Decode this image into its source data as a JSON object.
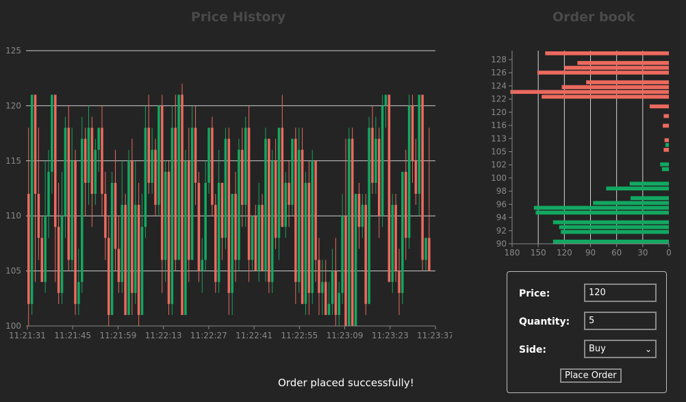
{
  "price_history": {
    "title": "Price History",
    "chart_data": {
      "type": "candlestick",
      "title": "Price History",
      "ylim": [
        100,
        125
      ],
      "y_ticks": [
        100,
        105,
        110,
        115,
        120,
        125
      ],
      "x_ticks": [
        "11:21:31",
        "11:21:45",
        "11:21:59",
        "11:22:13",
        "11:22:27",
        "11:22:41",
        "11:22:55",
        "11:23:09",
        "11:23:23",
        "11:23:37"
      ],
      "grid": "horizontal",
      "candles": [
        [
          112,
          102,
          100,
          118,
          "down"
        ],
        [
          102,
          121,
          101,
          121,
          "up"
        ],
        [
          121,
          112,
          104,
          121,
          "down"
        ],
        [
          112,
          108,
          106,
          118,
          "down"
        ],
        [
          108,
          104,
          104,
          110,
          "down"
        ],
        [
          104,
          110,
          103,
          115,
          "up"
        ],
        [
          110,
          114,
          108,
          116,
          "up"
        ],
        [
          114,
          121,
          112,
          121,
          "up"
        ],
        [
          121,
          109,
          104,
          121,
          "down"
        ],
        [
          109,
          103,
          102,
          113,
          "down"
        ],
        [
          103,
          110,
          102,
          114,
          "up"
        ],
        [
          110,
          118,
          108,
          119,
          "up"
        ],
        [
          118,
          106,
          105,
          120,
          "down"
        ],
        [
          106,
          115,
          105,
          118,
          "up"
        ],
        [
          115,
          102,
          101,
          116,
          "down"
        ],
        [
          102,
          104,
          101,
          107,
          "up"
        ],
        [
          104,
          117,
          103,
          119,
          "up"
        ],
        [
          117,
          113,
          110,
          118,
          "down"
        ],
        [
          113,
          118,
          111,
          120,
          "up"
        ],
        [
          118,
          112,
          109,
          119,
          "down"
        ],
        [
          112,
          116,
          111,
          117,
          "up"
        ],
        [
          116,
          118,
          114,
          118,
          "up"
        ],
        [
          118,
          112,
          110,
          120,
          "down"
        ],
        [
          112,
          108,
          106,
          114,
          "down"
        ],
        [
          108,
          101,
          100,
          110,
          "down"
        ],
        [
          101,
          113,
          101,
          114,
          "up"
        ],
        [
          113,
          107,
          105,
          116,
          "down"
        ],
        [
          107,
          104,
          103,
          110,
          "down"
        ],
        [
          104,
          111,
          103,
          115,
          "up"
        ],
        [
          111,
          101,
          101,
          112,
          "down"
        ],
        [
          101,
          115,
          101,
          116,
          "up"
        ],
        [
          115,
          103,
          101,
          117,
          "down"
        ],
        [
          103,
          111,
          102,
          115,
          "up"
        ],
        [
          111,
          101,
          100,
          113,
          "down"
        ],
        [
          101,
          109,
          101,
          112,
          "up"
        ],
        [
          109,
          118,
          108,
          120,
          "up"
        ],
        [
          118,
          113,
          112,
          121,
          "down"
        ],
        [
          113,
          116,
          112,
          118,
          "up"
        ],
        [
          116,
          111,
          110,
          117,
          "down"
        ],
        [
          111,
          120,
          110,
          120,
          "up"
        ],
        [
          120,
          106,
          103,
          121,
          "down"
        ],
        [
          106,
          114,
          104,
          115,
          "up"
        ],
        [
          114,
          102,
          101,
          115,
          "down"
        ],
        [
          102,
          118,
          101,
          120,
          "up"
        ],
        [
          118,
          106,
          105,
          121,
          "down"
        ],
        [
          106,
          121,
          106,
          121,
          "up"
        ],
        [
          121,
          101,
          101,
          122,
          "down"
        ],
        [
          101,
          115,
          101,
          116,
          "up"
        ],
        [
          115,
          106,
          104,
          118,
          "down"
        ],
        [
          106,
          118,
          106,
          120,
          "up"
        ],
        [
          118,
          113,
          111,
          120,
          "down"
        ],
        [
          113,
          105,
          104,
          114,
          "down"
        ],
        [
          105,
          106,
          103,
          108,
          "up"
        ],
        [
          106,
          113,
          105,
          115,
          "up"
        ],
        [
          113,
          118,
          112,
          118,
          "up"
        ],
        [
          118,
          111,
          110,
          119,
          "down"
        ],
        [
          111,
          104,
          103,
          112,
          "down"
        ],
        [
          104,
          113,
          103,
          116,
          "up"
        ],
        [
          113,
          108,
          106,
          113,
          "down"
        ],
        [
          108,
          117,
          107,
          118,
          "up"
        ],
        [
          117,
          103,
          101,
          118,
          "down"
        ],
        [
          103,
          112,
          101,
          112,
          "up"
        ],
        [
          112,
          106,
          104,
          114,
          "down"
        ],
        [
          106,
          116,
          105,
          117,
          "up"
        ],
        [
          116,
          111,
          109,
          118,
          "down"
        ],
        [
          111,
          118,
          109,
          119,
          "up"
        ],
        [
          118,
          106,
          104,
          120,
          "down"
        ],
        [
          106,
          110,
          105,
          110,
          "up"
        ],
        [
          110,
          105,
          105,
          111,
          "down"
        ],
        [
          105,
          111,
          104,
          113,
          "up"
        ],
        [
          111,
          105,
          105,
          112,
          "down"
        ],
        [
          105,
          117,
          104,
          118,
          "up"
        ],
        [
          117,
          104,
          103,
          117,
          "down"
        ],
        [
          104,
          115,
          103,
          116,
          "up"
        ],
        [
          115,
          108,
          107,
          117,
          "down"
        ],
        [
          108,
          118,
          106,
          118,
          "up"
        ],
        [
          118,
          109,
          109,
          121,
          "down"
        ],
        [
          109,
          113,
          108,
          114,
          "up"
        ],
        [
          113,
          111,
          109,
          115,
          "down"
        ],
        [
          111,
          117,
          110,
          117,
          "up"
        ],
        [
          117,
          104,
          102,
          118,
          "down"
        ],
        [
          104,
          116,
          103,
          118,
          "up"
        ],
        [
          116,
          102,
          102,
          118,
          "down"
        ],
        [
          102,
          113,
          101,
          114,
          "up"
        ],
        [
          113,
          103,
          101,
          115,
          "down"
        ],
        [
          103,
          115,
          102,
          116,
          "up"
        ],
        [
          115,
          106,
          104,
          115,
          "down"
        ],
        [
          106,
          103,
          101,
          108,
          "down"
        ],
        [
          103,
          104,
          101,
          106,
          "up"
        ],
        [
          104,
          101,
          101,
          106,
          "down"
        ],
        [
          101,
          102,
          101,
          104,
          "up"
        ],
        [
          102,
          105,
          101,
          107,
          "up"
        ],
        [
          105,
          101,
          100,
          108,
          "down"
        ],
        [
          101,
          103,
          100,
          104,
          "up"
        ],
        [
          103,
          110,
          102,
          112,
          "up"
        ],
        [
          110,
          100,
          100,
          117,
          "down"
        ],
        [
          100,
          117,
          100,
          118,
          "up"
        ],
        [
          117,
          100,
          100,
          118,
          "down"
        ],
        [
          100,
          112,
          100,
          112,
          "up"
        ],
        [
          112,
          109,
          107,
          113,
          "down"
        ],
        [
          109,
          111,
          108,
          112,
          "up"
        ],
        [
          111,
          102,
          101,
          112,
          "down"
        ],
        [
          102,
          118,
          102,
          119,
          "up"
        ],
        [
          118,
          113,
          112,
          120,
          "down"
        ],
        [
          113,
          117,
          112,
          119,
          "up"
        ],
        [
          117,
          110,
          108,
          118,
          "down"
        ],
        [
          110,
          120,
          109,
          121,
          "up"
        ],
        [
          120,
          121,
          118,
          121,
          "up"
        ],
        [
          121,
          104,
          104,
          121,
          "down"
        ],
        [
          104,
          111,
          103,
          112,
          "up"
        ],
        [
          111,
          105,
          104,
          112,
          "down"
        ],
        [
          105,
          103,
          101,
          107,
          "down"
        ],
        [
          103,
          114,
          102,
          114,
          "up"
        ],
        [
          114,
          108,
          106,
          116,
          "down"
        ],
        [
          108,
          120,
          107,
          121,
          "up"
        ],
        [
          120,
          115,
          113,
          121,
          "down"
        ],
        [
          115,
          112,
          111,
          117,
          "down"
        ],
        [
          112,
          121,
          110,
          121,
          "up"
        ],
        [
          121,
          106,
          105,
          121,
          "down"
        ],
        [
          106,
          108,
          105,
          108,
          "up"
        ],
        [
          108,
          105,
          105,
          118,
          "down"
        ]
      ]
    }
  },
  "order_book": {
    "title": "Order book",
    "chart_data": {
      "type": "bar",
      "orientation": "horizontal",
      "title": "Order book",
      "xlim": [
        180,
        0
      ],
      "x_ticks": [
        180,
        150,
        120,
        90,
        60,
        30,
        0
      ],
      "y_ticks": [
        "128",
        "126",
        "124",
        "122",
        "120",
        "116",
        "113",
        "105",
        "102",
        "100",
        "98",
        "96",
        "94",
        "92",
        "90"
      ],
      "series": [
        {
          "side": "ask",
          "color": "#ec6a5e",
          "values": [
            142,
            0,
            105,
            120,
            151,
            0,
            95,
            123,
            182,
            146,
            0,
            22,
            0,
            6,
            0,
            7,
            0,
            0,
            5,
            0,
            6,
            0,
            0,
            0,
            0,
            0,
            0,
            0,
            0,
            0,
            0,
            0,
            0,
            0,
            0,
            0,
            0,
            0,
            0,
            0
          ]
        },
        {
          "side": "bid",
          "color": "#12a861",
          "values": [
            0,
            0,
            0,
            0,
            0,
            0,
            0,
            0,
            0,
            0,
            0,
            0,
            0,
            0,
            0,
            0,
            0,
            0,
            0,
            4,
            0,
            0,
            0,
            10,
            8,
            0,
            0,
            45,
            72,
            0,
            44,
            87,
            155,
            153,
            0,
            133,
            126,
            124,
            0,
            133
          ]
        }
      ]
    }
  },
  "order_form": {
    "price_label": "Price:",
    "price_value": "120",
    "quantity_label": "Quantity:",
    "quantity_value": "5",
    "side_label": "Side:",
    "side_value": "Buy",
    "submit_label": "Place Order"
  },
  "status_message": "Order placed successfully!",
  "colors": {
    "up": "#12a861",
    "down": "#ec6a5e",
    "background": "#242424"
  }
}
